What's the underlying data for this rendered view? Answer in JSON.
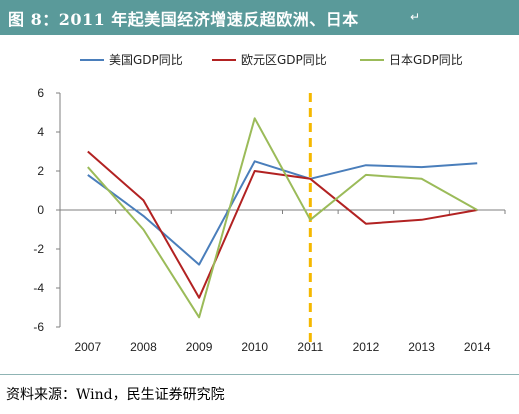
{
  "figure": {
    "title": "图 8：2011 年起美国经济增速反超欧洲、日本",
    "title_mark": "↵",
    "source": "资料来源：Wind，民生证券研究院"
  },
  "colors": {
    "title_bar": "#5a9a9a",
    "marker_line": "#f5b800"
  },
  "chart_data": {
    "type": "line",
    "title": "",
    "xlabel": "",
    "ylabel": "",
    "x": [
      "2007",
      "2008",
      "2009",
      "2010",
      "2011",
      "2012",
      "2013",
      "2014"
    ],
    "ylim": [
      -6,
      6
    ],
    "yticks": [
      "6",
      "4",
      "2",
      "0",
      "-2",
      "-4",
      "-6"
    ],
    "grid": false,
    "legend_position": "top",
    "vertical_marker": {
      "x": "2011",
      "style": "dashed",
      "color": "#f5b800"
    },
    "series": [
      {
        "name": "美国GDP同比",
        "color": "#4a7ebb",
        "values": [
          1.8,
          -0.3,
          -2.8,
          2.5,
          1.6,
          2.3,
          2.2,
          2.4
        ]
      },
      {
        "name": "欧元区GDP同比",
        "color": "#b22222",
        "values": [
          3.0,
          0.5,
          -4.5,
          2.0,
          1.6,
          -0.7,
          -0.5,
          0.0
        ]
      },
      {
        "name": "日本GDP同比",
        "color": "#9bbb59",
        "values": [
          2.2,
          -1.0,
          -5.5,
          4.7,
          -0.5,
          1.8,
          1.6,
          0.0
        ]
      }
    ]
  }
}
